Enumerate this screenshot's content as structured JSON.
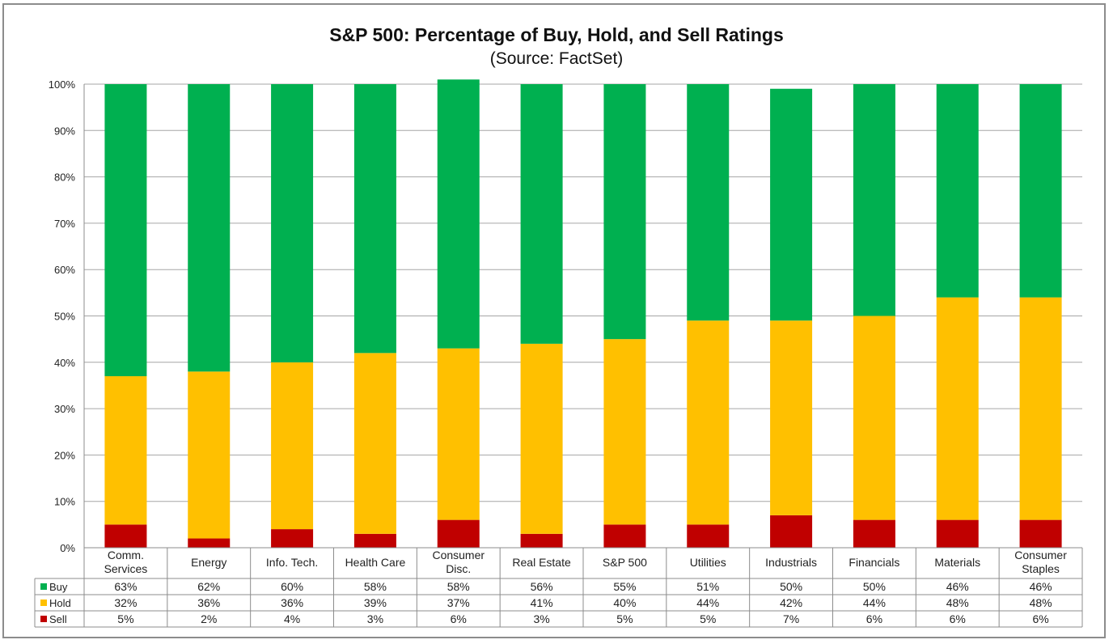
{
  "chart_data": {
    "type": "bar",
    "stacked": true,
    "title": "S&P 500: Percentage of Buy, Hold, and Sell Ratings",
    "subtitle": "(Source: FactSet)",
    "categories": [
      [
        "Comm.",
        "Services"
      ],
      [
        "Energy"
      ],
      [
        "Info. Tech."
      ],
      [
        "Health Care"
      ],
      [
        "Consumer",
        "Disc."
      ],
      [
        "Real Estate"
      ],
      [
        "S&P 500"
      ],
      [
        "Utilities"
      ],
      [
        "Industrials"
      ],
      [
        "Financials"
      ],
      [
        "Materials"
      ],
      [
        "Consumer",
        "Staples"
      ]
    ],
    "series": [
      {
        "name": "Buy",
        "color": "#00b050",
        "values": [
          63,
          62,
          60,
          58,
          58,
          56,
          55,
          51,
          50,
          50,
          46,
          46
        ],
        "labels": [
          "63%",
          "62%",
          "60%",
          "58%",
          "58%",
          "56%",
          "55%",
          "51%",
          "50%",
          "50%",
          "46%",
          "46%"
        ]
      },
      {
        "name": "Hold",
        "color": "#ffc000",
        "values": [
          32,
          36,
          36,
          39,
          37,
          41,
          40,
          44,
          42,
          44,
          48,
          48
        ],
        "labels": [
          "32%",
          "36%",
          "36%",
          "39%",
          "37%",
          "41%",
          "40%",
          "44%",
          "42%",
          "44%",
          "48%",
          "48%"
        ]
      },
      {
        "name": "Sell",
        "color": "#c00000",
        "values": [
          5,
          2,
          4,
          3,
          6,
          3,
          5,
          5,
          7,
          6,
          6,
          6
        ],
        "labels": [
          "5%",
          "2%",
          "4%",
          "3%",
          "6%",
          "3%",
          "5%",
          "5%",
          "7%",
          "6%",
          "6%",
          "6%"
        ]
      }
    ],
    "y_ticks": [
      "0%",
      "10%",
      "20%",
      "30%",
      "40%",
      "50%",
      "60%",
      "70%",
      "80%",
      "90%",
      "100%"
    ],
    "ylim": [
      0,
      100
    ],
    "grid": true,
    "legend": "data table"
  }
}
